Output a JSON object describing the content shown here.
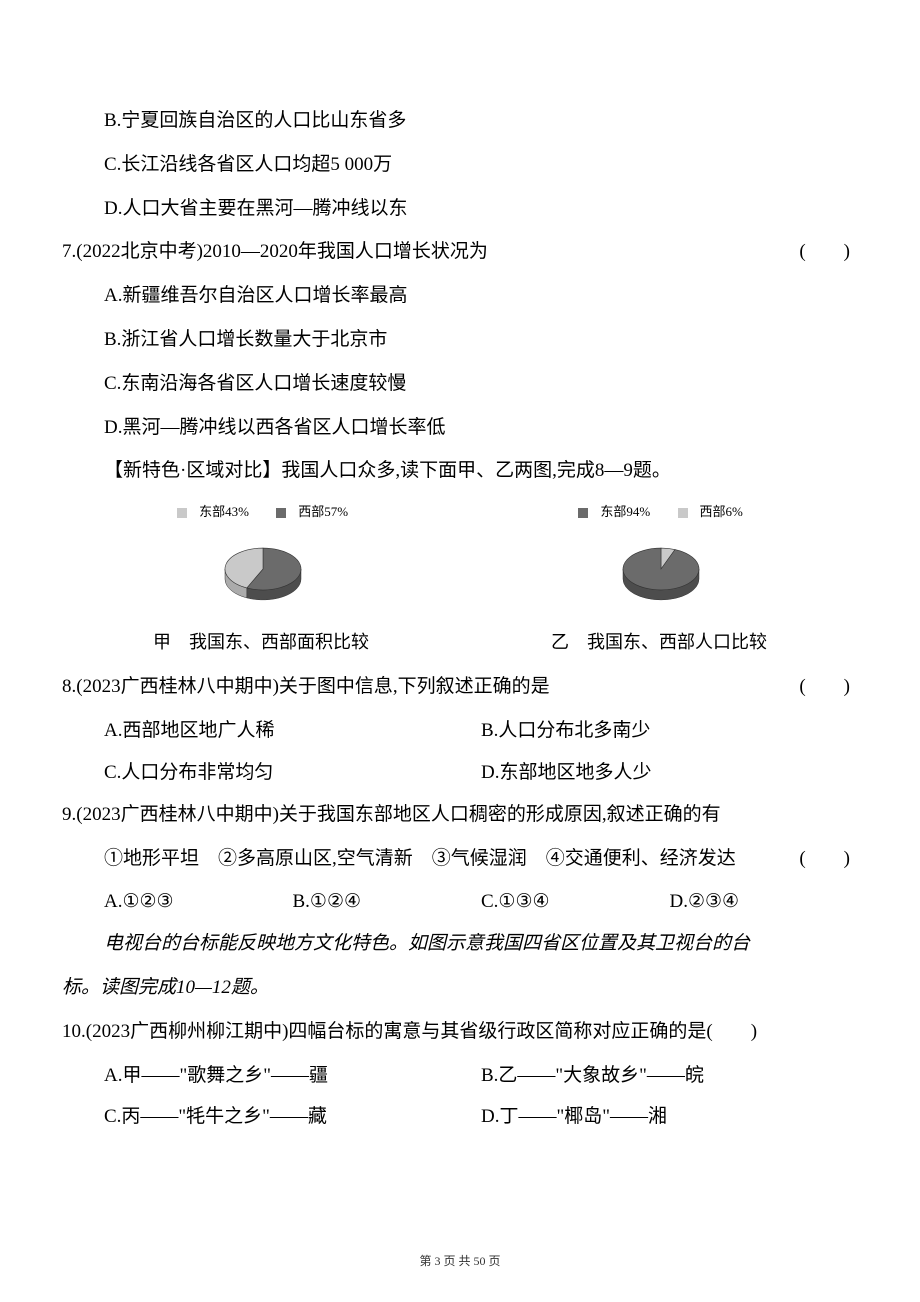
{
  "lines": {
    "opt_b6": "B.宁夏回族自治区的人口比山东省多",
    "opt_c6": "C.长江沿线各省区人口均超5 000万",
    "opt_d6": "D.人口大省主要在黑河—腾冲线以东",
    "q7": "7.(2022北京中考)2010—2020年我国人口增长状况为",
    "q7_paren": "(　　)",
    "q7_a": "A.新疆维吾尔自治区人口增长率最高",
    "q7_b": "B.浙江省人口增长数量大于北京市",
    "q7_c": "C.东南沿海各省区人口增长速度较慢",
    "q7_d": "D.黑河—腾冲线以西各省区人口增长率低",
    "intro_89": "【新特色·区域对比】我国人口众多,读下面甲、乙两图,完成8—9题。",
    "q8": "8.(2023广西桂林八中期中)关于图中信息,下列叙述正确的是",
    "q8_paren": "(　　)",
    "q8_a": "A.西部地区地广人稀",
    "q8_b": "B.人口分布北多南少",
    "q8_c": "C.人口分布非常均匀",
    "q8_d": "D.东部地区地多人少",
    "q9": "9.(2023广西桂林八中期中)关于我国东部地区人口稠密的形成原因,叙述正确的有",
    "q9_paren": "(　　)",
    "q9_items": "①地形平坦　②多高原山区,空气清新　③气候湿润　④交通便利、经济发达",
    "q9_a": "A.①②③",
    "q9_b": "B.①②④",
    "q9_c": "C.①③④",
    "q9_d": "D.②③④",
    "intro_1012_a": "电视台的台标能反映地方文化特色。如图示意我国四省区位置及其卫视台的台",
    "intro_1012_b": "标。读图完成10—12题。",
    "q10": "10.(2023广西柳州柳江期中)四幅台标的寓意与其省级行政区简称对应正确的是(　　)",
    "q10_a": "A.甲——\"歌舞之乡\"——疆",
    "q10_b": "B.乙——\"大象故乡\"——皖",
    "q10_c": "C.丙——\"牦牛之乡\"——藏",
    "q10_d": "D.丁——\"椰岛\"——湘"
  },
  "charts": {
    "jia": {
      "legend_east": "东部43%",
      "legend_west": "西部57%",
      "east_pct": 43,
      "west_pct": 57,
      "east_color": "#c9c9c9",
      "west_color": "#6b6b6b",
      "caption": "甲　我国东、西部面积比较",
      "radius": 38,
      "tilt": 0.55
    },
    "yi": {
      "legend_east": "东部94%",
      "legend_west": "西部6%",
      "east_pct": 94,
      "west_pct": 6,
      "east_color": "#6b6b6b",
      "west_color": "#c9c9c9",
      "caption": "乙　我国东、西部人口比较",
      "radius": 38,
      "tilt": 0.55
    }
  },
  "footer": {
    "text": "第 3 页 共 50 页"
  }
}
